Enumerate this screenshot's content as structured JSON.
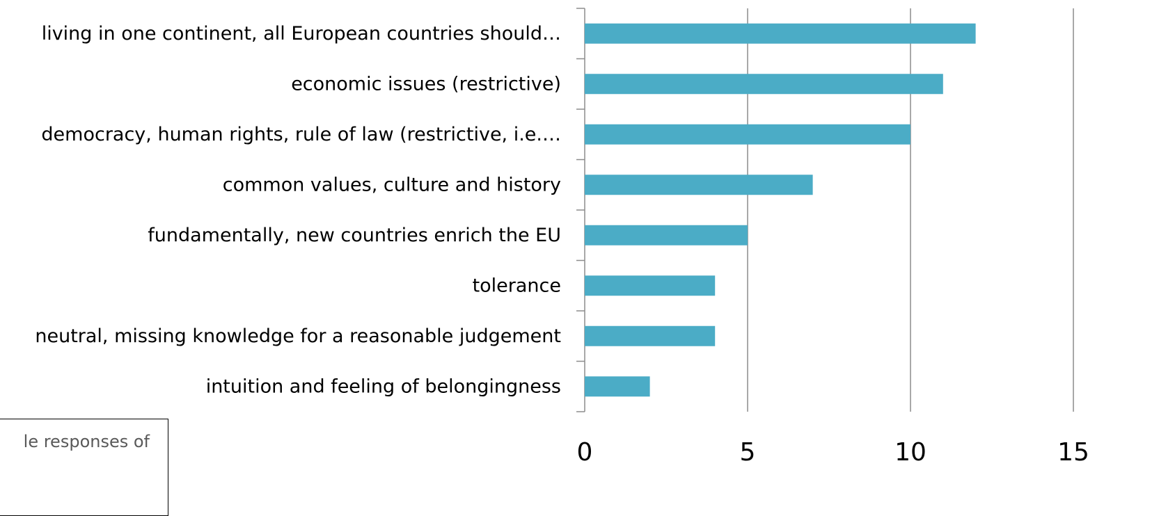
{
  "chart_data": {
    "type": "bar",
    "orientation": "horizontal",
    "categories": [
      "living in one continent, all European countries should…",
      "economic issues (restrictive)",
      "democracy, human rights, rule of law (restrictive, i.e.…",
      "common values, culture and history",
      "fundamentally, new countries enrich the EU",
      "tolerance",
      "neutral, missing knowledge for a reasonable judgement",
      "intuition and feeling of belongingness"
    ],
    "values": [
      12,
      11,
      10,
      7,
      5,
      4,
      4,
      2
    ],
    "xlim": [
      0,
      15
    ],
    "xticks": [
      0,
      5,
      10,
      15
    ],
    "grid": true,
    "bar_color": "#4bacc6",
    "grid_color": "#8c8c8c",
    "title": "",
    "xlabel": "",
    "ylabel": ""
  },
  "note": {
    "text": "le responses of"
  }
}
